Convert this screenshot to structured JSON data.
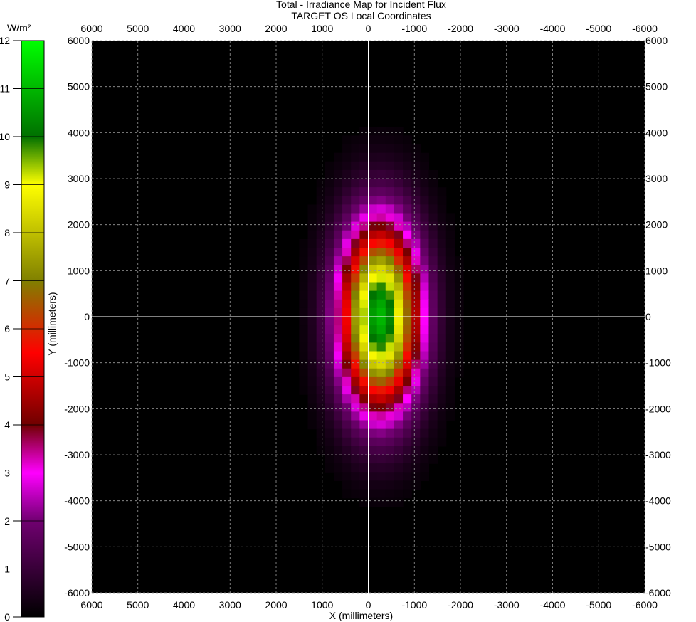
{
  "chart_data": {
    "type": "heatmap",
    "title": "Total - Irradiance Map for Incident Flux",
    "subtitle": "TARGET OS    Local Coordinates",
    "xlabel": "X (millimeters)",
    "ylabel": "Y (millimeters)",
    "colorbar_label": "W/m²",
    "xlim": [
      6000,
      -6000
    ],
    "ylim": [
      -6000,
      6000
    ],
    "x_ticks": [
      6000,
      5000,
      4000,
      3000,
      2000,
      1000,
      0,
      -1000,
      -2000,
      -3000,
      -4000,
      -5000,
      -6000
    ],
    "y_ticks": [
      6000,
      5000,
      4000,
      3000,
      2000,
      1000,
      0,
      -1000,
      -2000,
      -3000,
      -4000,
      -5000,
      -6000
    ],
    "x_tick_labels": [
      "6000",
      "5000",
      "4000",
      "3000",
      "2000",
      "1000",
      "0",
      "-1000",
      "-2000",
      "-3000",
      "-4000",
      "-5000",
      "-6000"
    ],
    "y_tick_labels": [
      "6000",
      "5000",
      "4000",
      "3000",
      "2000",
      "1000",
      "0",
      "-1000",
      "-2000",
      "-3000",
      "-4000",
      "-5000",
      "-6000"
    ],
    "colorbar_range": [
      0,
      12
    ],
    "colorbar_ticks": [
      "0",
      "1",
      "2",
      "3",
      "4",
      "5",
      "6",
      "7",
      "8",
      "9",
      "10",
      "11",
      "12"
    ],
    "colormap": [
      {
        "value": 0,
        "color": "#000000"
      },
      {
        "value": 2,
        "color": "#700070"
      },
      {
        "value": 3,
        "color": "#ff00ff"
      },
      {
        "value": 4,
        "color": "#700000"
      },
      {
        "value": 5.5,
        "color": "#ff0000"
      },
      {
        "value": 7,
        "color": "#808000"
      },
      {
        "value": 9,
        "color": "#ffff00"
      },
      {
        "value": 10,
        "color": "#007000"
      },
      {
        "value": 12,
        "color": "#00ff00"
      }
    ],
    "peak": {
      "x": -250,
      "y": 0,
      "value": 11
    },
    "spot_sigma": {
      "x": 600,
      "y": 1400
    },
    "grid": true,
    "crosshair": {
      "x": 0,
      "y": 0
    }
  }
}
